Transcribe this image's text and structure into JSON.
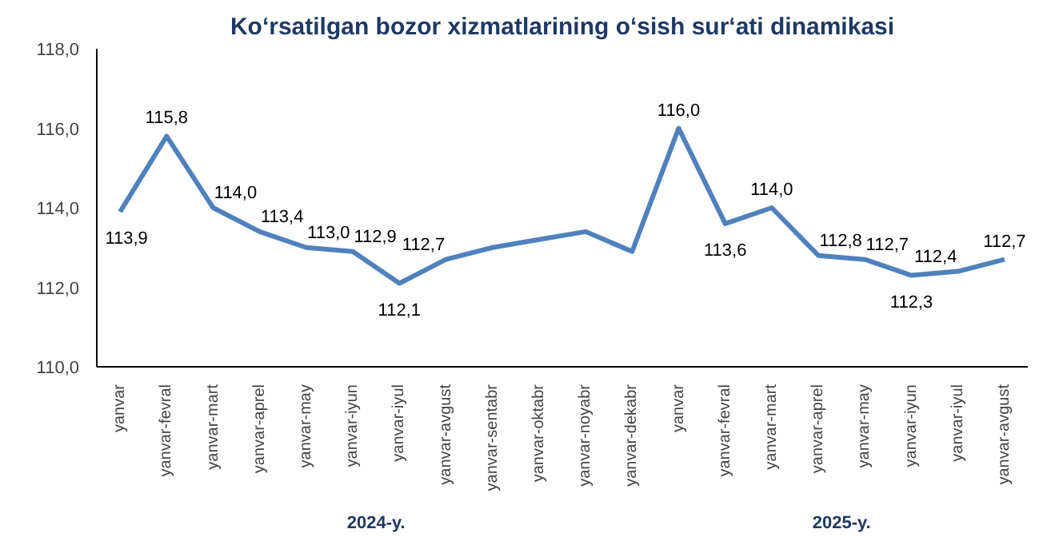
{
  "chart_data": {
    "type": "line",
    "title": "Ko‘rsatilgan bozor xizmatlarining o‘sish sur‘ati dinamikasi",
    "categories": [
      "yanvar",
      "yanvar-fevral",
      "yanvar-mart",
      "yanvar-aprel",
      "yanvar-may",
      "yanvar-iyun",
      "yanvar-iyul",
      "yanvar-avgust",
      "yanvar-sentabr",
      "yanvar-oktabr",
      "yanvar-noyabr",
      "yanvar-dekabr",
      "yanvar",
      "yanvar-fevral",
      "yanvar-mart",
      "yanvar-aprel",
      "yanvar-may",
      "yanvar-iyun",
      "yanvar-iyul",
      "yanvar-avgust"
    ],
    "series": [
      {
        "color": "#4f81bd",
        "values": [
          113.9,
          115.8,
          114.0,
          113.4,
          113.0,
          112.9,
          112.1,
          112.7,
          113.0,
          113.2,
          113.4,
          112.9,
          116.0,
          113.6,
          114.0,
          112.8,
          112.7,
          112.3,
          112.4,
          112.7
        ],
        "value_labels": [
          "113,9",
          "115,8",
          "114,0",
          "113,4",
          "113,0",
          "112,9",
          "112,1",
          "112,7",
          null,
          null,
          null,
          null,
          "116,0",
          "113,6",
          "114,0",
          "112,8",
          "112,7",
          "112,3",
          "112,4",
          "112,7"
        ]
      }
    ],
    "ylim": [
      110,
      118
    ],
    "yticks": [
      {
        "value": 110,
        "label": "110,0"
      },
      {
        "value": 112,
        "label": "112,0"
      },
      {
        "value": 114,
        "label": "114,0"
      },
      {
        "value": 116,
        "label": "116,0"
      },
      {
        "value": 118,
        "label": "118,0"
      }
    ],
    "annotations": [
      "2024-y.",
      "2025-y."
    ],
    "grid": false,
    "marker": "none",
    "line_style": "solid"
  }
}
